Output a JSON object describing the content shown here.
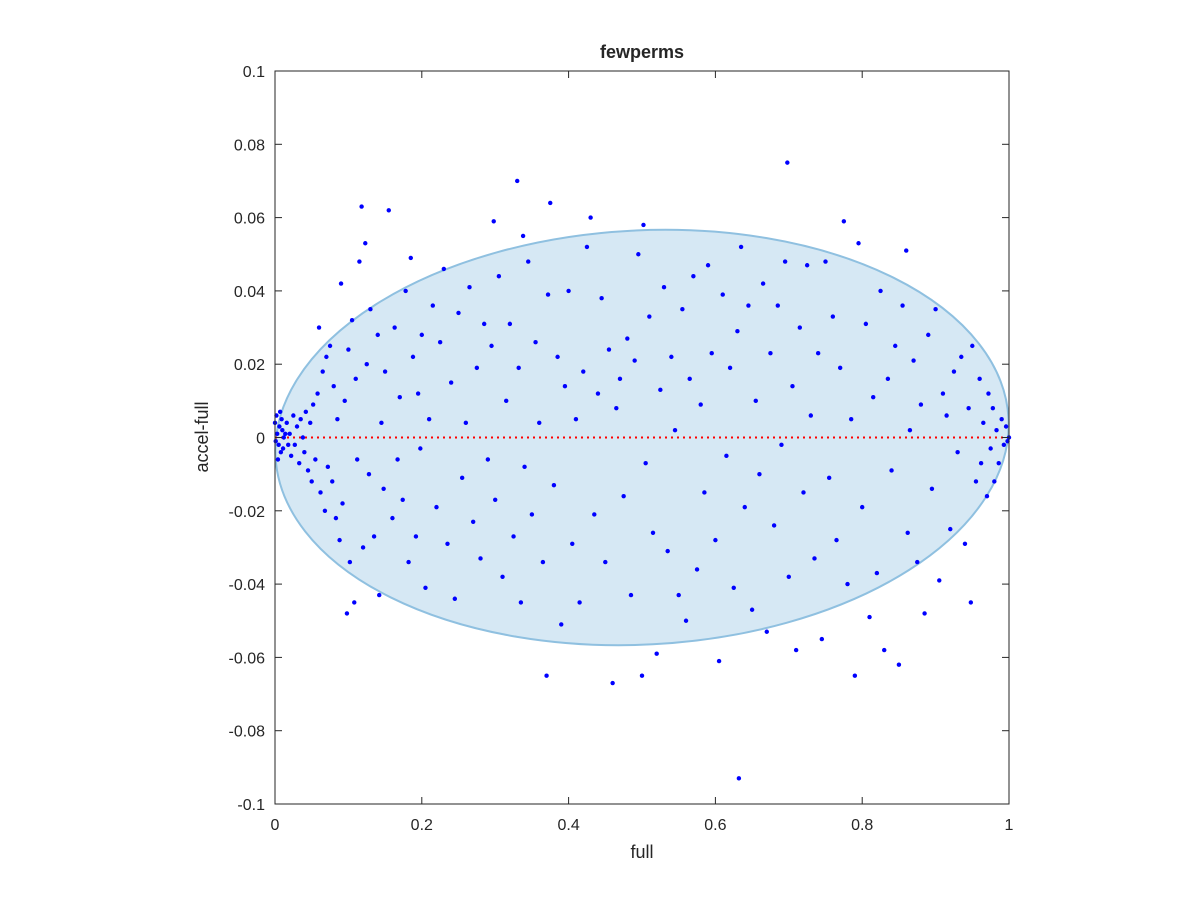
{
  "chart_data": {
    "type": "scatter",
    "title": "fewperms",
    "xlabel": "full",
    "ylabel": "accel-full",
    "xlim": [
      0,
      1
    ],
    "ylim": [
      -0.1,
      0.1
    ],
    "x_ticks": [
      0,
      0.2,
      0.4,
      0.6,
      0.8,
      1
    ],
    "x_tick_labels": [
      "0",
      "0.2",
      "0.4",
      "0.6",
      "0.8",
      "1"
    ],
    "y_ticks": [
      -0.1,
      -0.08,
      -0.06,
      -0.04,
      -0.02,
      0,
      0.02,
      0.04,
      0.06,
      0.08,
      0.1
    ],
    "y_tick_labels": [
      "-0.1",
      "-0.08",
      "-0.06",
      "-0.04",
      "-0.02",
      "0",
      "0.02",
      "0.04",
      "0.06",
      "0.08",
      "0.1"
    ],
    "grid": false,
    "legend": "none",
    "colors": {
      "points": "#0000ff",
      "ellipse_fill": "#d6e8f4",
      "ellipse_edge": "#8fc0e0",
      "zero_line": "#ff0000",
      "axes": "#262626"
    },
    "ellipse": {
      "center_x": 0.5,
      "center_y": 0.0,
      "semi_axis_x": 0.5,
      "semi_axis_y": 0.0565,
      "rotation_deg": -3
    },
    "zero_line": {
      "y": 0,
      "style": "dotted"
    },
    "series": [
      {
        "values": [
          [
            0.0,
            0.004
          ],
          [
            0.003,
            0.001
          ],
          [
            0.005,
            -0.002
          ],
          [
            0.006,
            0.003
          ],
          [
            0.008,
            -0.004
          ],
          [
            0.01,
            0.002
          ],
          [
            0.012,
            0.0
          ],
          [
            0.004,
            -0.006
          ],
          [
            0.002,
            0.006
          ],
          [
            0.009,
            0.005
          ],
          [
            0.011,
            -0.003
          ],
          [
            0.014,
            0.001
          ],
          [
            0.016,
            0.004
          ],
          [
            0.018,
            -0.002
          ],
          [
            0.007,
            0.007
          ],
          [
            0.001,
            -0.001
          ],
          [
            0.02,
            0.001
          ],
          [
            0.022,
            -0.005
          ],
          [
            0.025,
            0.006
          ],
          [
            0.027,
            -0.002
          ],
          [
            0.03,
            0.003
          ],
          [
            0.033,
            -0.007
          ],
          [
            0.035,
            0.005
          ],
          [
            0.038,
            0.0
          ],
          [
            0.04,
            -0.004
          ],
          [
            0.042,
            0.007
          ],
          [
            0.045,
            -0.009
          ],
          [
            0.048,
            0.004
          ],
          [
            0.05,
            -0.012
          ],
          [
            0.052,
            0.009
          ],
          [
            0.055,
            -0.006
          ],
          [
            0.058,
            0.012
          ],
          [
            0.06,
            0.03
          ],
          [
            0.062,
            -0.015
          ],
          [
            0.065,
            0.018
          ],
          [
            0.068,
            -0.02
          ],
          [
            0.07,
            0.022
          ],
          [
            0.072,
            -0.008
          ],
          [
            0.075,
            0.025
          ],
          [
            0.078,
            -0.012
          ],
          [
            0.08,
            0.014
          ],
          [
            0.083,
            -0.022
          ],
          [
            0.085,
            0.005
          ],
          [
            0.088,
            -0.028
          ],
          [
            0.09,
            0.042
          ],
          [
            0.092,
            -0.018
          ],
          [
            0.095,
            0.01
          ],
          [
            0.098,
            -0.048
          ],
          [
            0.1,
            0.024
          ],
          [
            0.102,
            -0.034
          ],
          [
            0.105,
            0.032
          ],
          [
            0.108,
            -0.045
          ],
          [
            0.11,
            0.016
          ],
          [
            0.112,
            -0.006
          ],
          [
            0.115,
            0.048
          ],
          [
            0.118,
            0.063
          ],
          [
            0.12,
            -0.03
          ],
          [
            0.123,
            0.053
          ],
          [
            0.125,
            0.02
          ],
          [
            0.128,
            -0.01
          ],
          [
            0.13,
            0.035
          ],
          [
            0.135,
            -0.027
          ],
          [
            0.14,
            0.028
          ],
          [
            0.142,
            -0.043
          ],
          [
            0.145,
            0.004
          ],
          [
            0.148,
            -0.014
          ],
          [
            0.15,
            0.018
          ],
          [
            0.155,
            0.062
          ],
          [
            0.16,
            -0.022
          ],
          [
            0.163,
            0.03
          ],
          [
            0.167,
            -0.006
          ],
          [
            0.17,
            0.011
          ],
          [
            0.174,
            -0.017
          ],
          [
            0.178,
            0.04
          ],
          [
            0.182,
            -0.034
          ],
          [
            0.185,
            0.049
          ],
          [
            0.188,
            0.022
          ],
          [
            0.192,
            -0.027
          ],
          [
            0.195,
            0.012
          ],
          [
            0.198,
            -0.003
          ],
          [
            0.2,
            0.028
          ],
          [
            0.205,
            -0.041
          ],
          [
            0.21,
            0.005
          ],
          [
            0.215,
            0.036
          ],
          [
            0.22,
            -0.019
          ],
          [
            0.225,
            0.026
          ],
          [
            0.23,
            0.046
          ],
          [
            0.235,
            -0.029
          ],
          [
            0.24,
            0.015
          ],
          [
            0.245,
            -0.044
          ],
          [
            0.25,
            0.034
          ],
          [
            0.255,
            -0.011
          ],
          [
            0.26,
            0.004
          ],
          [
            0.265,
            0.041
          ],
          [
            0.27,
            -0.023
          ],
          [
            0.275,
            0.019
          ],
          [
            0.28,
            -0.033
          ],
          [
            0.285,
            0.031
          ],
          [
            0.29,
            -0.006
          ],
          [
            0.295,
            0.025
          ],
          [
            0.298,
            0.059
          ],
          [
            0.3,
            -0.017
          ],
          [
            0.305,
            0.044
          ],
          [
            0.31,
            -0.038
          ],
          [
            0.315,
            0.01
          ],
          [
            0.32,
            0.031
          ],
          [
            0.325,
            -0.027
          ],
          [
            0.33,
            0.07
          ],
          [
            0.332,
            0.019
          ],
          [
            0.335,
            -0.045
          ],
          [
            0.338,
            0.055
          ],
          [
            0.34,
            -0.008
          ],
          [
            0.345,
            0.048
          ],
          [
            0.35,
            -0.021
          ],
          [
            0.355,
            0.026
          ],
          [
            0.36,
            0.004
          ],
          [
            0.365,
            -0.034
          ],
          [
            0.37,
            -0.065
          ],
          [
            0.372,
            0.039
          ],
          [
            0.375,
            0.064
          ],
          [
            0.38,
            -0.013
          ],
          [
            0.385,
            0.022
          ],
          [
            0.39,
            -0.051
          ],
          [
            0.395,
            0.014
          ],
          [
            0.4,
            0.04
          ],
          [
            0.405,
            -0.029
          ],
          [
            0.41,
            0.005
          ],
          [
            0.415,
            -0.045
          ],
          [
            0.42,
            0.018
          ],
          [
            0.425,
            0.052
          ],
          [
            0.43,
            0.06
          ],
          [
            0.435,
            -0.021
          ],
          [
            0.44,
            0.012
          ],
          [
            0.445,
            0.038
          ],
          [
            0.45,
            -0.034
          ],
          [
            0.455,
            0.024
          ],
          [
            0.46,
            -0.067
          ],
          [
            0.465,
            0.008
          ],
          [
            0.47,
            0.016
          ],
          [
            0.475,
            -0.016
          ],
          [
            0.48,
            0.027
          ],
          [
            0.485,
            -0.043
          ],
          [
            0.49,
            0.021
          ],
          [
            0.495,
            0.05
          ],
          [
            0.5,
            -0.065
          ],
          [
            0.502,
            0.058
          ],
          [
            0.505,
            -0.007
          ],
          [
            0.51,
            0.033
          ],
          [
            0.515,
            -0.026
          ],
          [
            0.52,
            -0.059
          ],
          [
            0.525,
            0.013
          ],
          [
            0.53,
            0.041
          ],
          [
            0.535,
            -0.031
          ],
          [
            0.54,
            0.022
          ],
          [
            0.545,
            0.002
          ],
          [
            0.55,
            -0.043
          ],
          [
            0.555,
            0.035
          ],
          [
            0.56,
            -0.05
          ],
          [
            0.565,
            0.016
          ],
          [
            0.57,
            0.044
          ],
          [
            0.575,
            -0.036
          ],
          [
            0.58,
            0.009
          ],
          [
            0.585,
            -0.015
          ],
          [
            0.59,
            0.047
          ],
          [
            0.595,
            0.023
          ],
          [
            0.6,
            -0.028
          ],
          [
            0.605,
            -0.061
          ],
          [
            0.61,
            0.039
          ],
          [
            0.615,
            -0.005
          ],
          [
            0.62,
            0.019
          ],
          [
            0.625,
            -0.041
          ],
          [
            0.63,
            0.029
          ],
          [
            0.632,
            -0.093
          ],
          [
            0.635,
            0.052
          ],
          [
            0.64,
            -0.019
          ],
          [
            0.645,
            0.036
          ],
          [
            0.65,
            -0.047
          ],
          [
            0.655,
            0.01
          ],
          [
            0.66,
            -0.01
          ],
          [
            0.665,
            0.042
          ],
          [
            0.67,
            -0.053
          ],
          [
            0.675,
            0.023
          ],
          [
            0.68,
            -0.024
          ],
          [
            0.685,
            0.036
          ],
          [
            0.69,
            -0.002
          ],
          [
            0.695,
            0.048
          ],
          [
            0.698,
            0.075
          ],
          [
            0.7,
            -0.038
          ],
          [
            0.705,
            0.014
          ],
          [
            0.71,
            -0.058
          ],
          [
            0.715,
            0.03
          ],
          [
            0.72,
            -0.015
          ],
          [
            0.725,
            0.047
          ],
          [
            0.73,
            0.006
          ],
          [
            0.735,
            -0.033
          ],
          [
            0.74,
            0.023
          ],
          [
            0.745,
            -0.055
          ],
          [
            0.75,
            0.048
          ],
          [
            0.755,
            -0.011
          ],
          [
            0.76,
            0.033
          ],
          [
            0.765,
            -0.028
          ],
          [
            0.77,
            0.019
          ],
          [
            0.775,
            0.059
          ],
          [
            0.78,
            -0.04
          ],
          [
            0.785,
            0.005
          ],
          [
            0.79,
            -0.065
          ],
          [
            0.795,
            0.053
          ],
          [
            0.8,
            -0.019
          ],
          [
            0.805,
            0.031
          ],
          [
            0.81,
            -0.049
          ],
          [
            0.815,
            0.011
          ],
          [
            0.82,
            -0.037
          ],
          [
            0.825,
            0.04
          ],
          [
            0.83,
            -0.058
          ],
          [
            0.835,
            0.016
          ],
          [
            0.84,
            -0.009
          ],
          [
            0.845,
            0.025
          ],
          [
            0.85,
            -0.062
          ],
          [
            0.855,
            0.036
          ],
          [
            0.86,
            0.051
          ],
          [
            0.862,
            -0.026
          ],
          [
            0.865,
            0.002
          ],
          [
            0.87,
            0.021
          ],
          [
            0.875,
            -0.034
          ],
          [
            0.88,
            0.009
          ],
          [
            0.885,
            -0.048
          ],
          [
            0.89,
            0.028
          ],
          [
            0.895,
            -0.014
          ],
          [
            0.9,
            0.035
          ],
          [
            0.905,
            -0.039
          ],
          [
            0.91,
            0.012
          ],
          [
            0.915,
            0.006
          ],
          [
            0.92,
            -0.025
          ],
          [
            0.925,
            0.018
          ],
          [
            0.93,
            -0.004
          ],
          [
            0.935,
            0.022
          ],
          [
            0.94,
            -0.029
          ],
          [
            0.945,
            0.008
          ],
          [
            0.948,
            -0.045
          ],
          [
            0.95,
            0.025
          ],
          [
            0.955,
            -0.012
          ],
          [
            0.96,
            0.016
          ],
          [
            0.962,
            -0.007
          ],
          [
            0.965,
            0.004
          ],
          [
            0.97,
            -0.016
          ],
          [
            0.972,
            0.012
          ],
          [
            0.975,
            -0.003
          ],
          [
            0.978,
            0.008
          ],
          [
            0.98,
            -0.012
          ],
          [
            0.983,
            0.002
          ],
          [
            0.986,
            -0.007
          ],
          [
            0.99,
            0.005
          ],
          [
            0.993,
            -0.002
          ],
          [
            0.996,
            0.003
          ],
          [
            0.998,
            -0.001
          ],
          [
            1.0,
            0.0
          ]
        ]
      }
    ]
  }
}
